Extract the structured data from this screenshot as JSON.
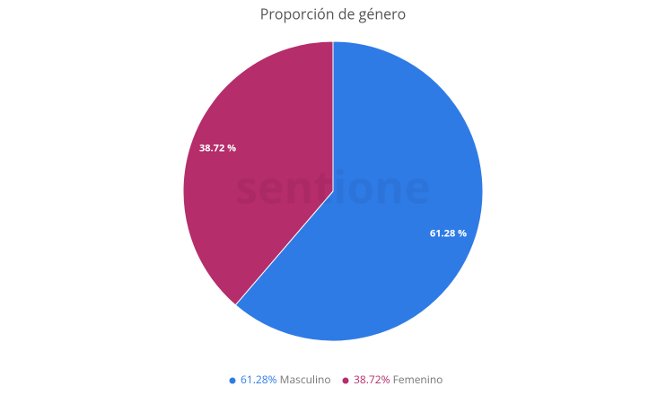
{
  "chart_data": {
    "type": "pie",
    "title": "Proporción de género",
    "watermark": "sentione",
    "categories": [
      "Masculino",
      "Femenino"
    ],
    "values": [
      61.28,
      38.72
    ],
    "value_labels": [
      "61.28 %",
      "38.72 %"
    ],
    "legend_labels": [
      "61.28%",
      "38.72%"
    ],
    "colors": [
      "#2f7be6",
      "#b52d6b"
    ]
  }
}
